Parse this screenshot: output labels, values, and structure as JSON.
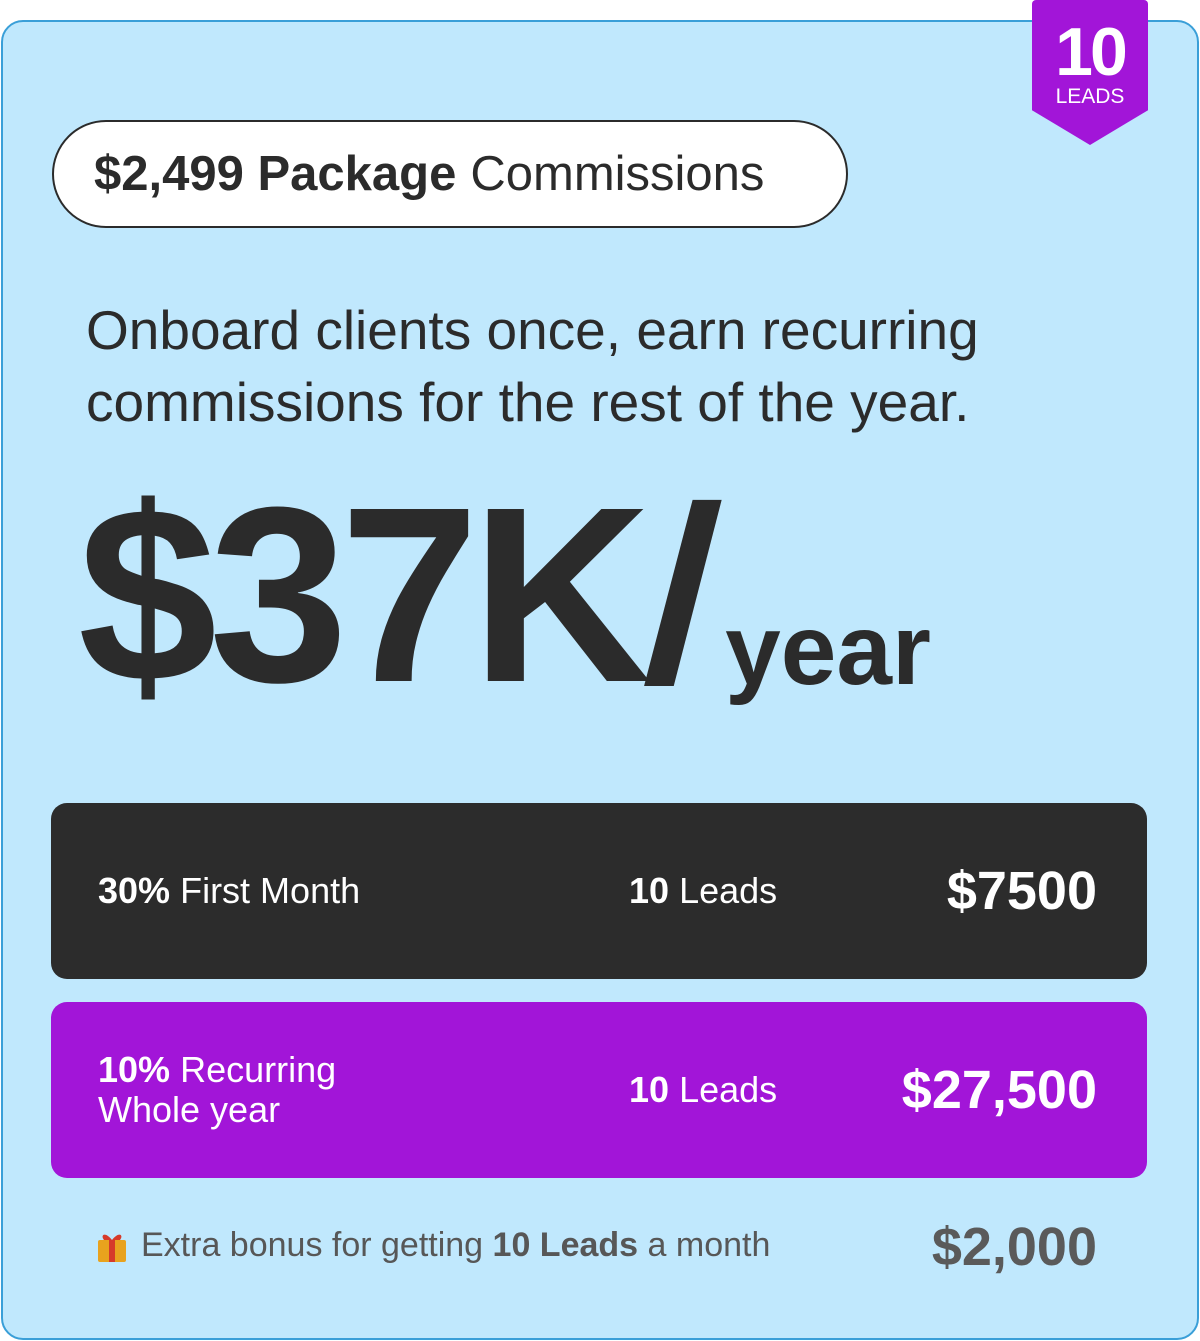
{
  "badge": {
    "number": "10",
    "label": "LEADS"
  },
  "package": {
    "price": "$2,499 Package",
    "suffix": "Commissions"
  },
  "tagline": "Onboard clients once, earn recurring commissions for the rest of the year.",
  "headline": {
    "amount": "$37K",
    "slash": "/",
    "period": "year"
  },
  "rows": [
    {
      "percent": "30%",
      "desc": "First Month",
      "desc2": "",
      "leads_num": "10",
      "leads_label": "Leads",
      "value": "$7500"
    },
    {
      "percent": "10%",
      "desc": "Recurring",
      "desc2": "Whole year",
      "leads_num": "10",
      "leads_label": "Leads",
      "value": "$27,500"
    }
  ],
  "bonus": {
    "icon": "gift-icon",
    "pre": "Extra bonus for getting",
    "bold": "10 Leads",
    "post": "a month",
    "value": "$2,000"
  },
  "colors": {
    "background": "#c0e8fd",
    "border": "#3a9fd8",
    "accent": "#a215d8",
    "dark": "#2c2c2c"
  }
}
